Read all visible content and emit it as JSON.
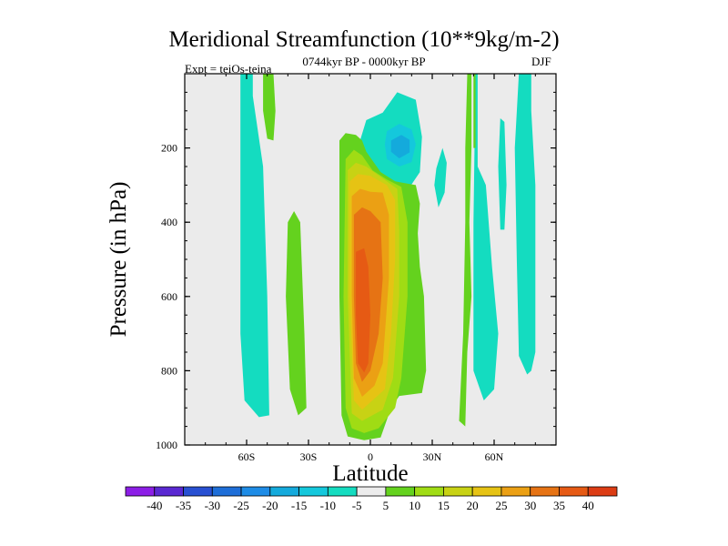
{
  "chart_data": {
    "type": "heatmap",
    "title": "Meridional Streamfunction (10**9kg/m-2)",
    "subtitle": "0744kyr BP - 0000kyr BP",
    "left_annotation": "Expt = teiOs-teina",
    "right_annotation": "DJF",
    "xlabel": "Latitude",
    "ylabel": "Pressure (in hPa)",
    "xlim": [
      -90,
      90
    ],
    "ylim": [
      0,
      1000
    ],
    "x_ticks": [
      -60,
      -30,
      0,
      30,
      60
    ],
    "x_tick_labels": [
      "60S",
      "30S",
      "0",
      "30N",
      "60N"
    ],
    "y_ticks": [
      200,
      400,
      600,
      800,
      1000
    ],
    "y_tick_labels": [
      "200",
      "400",
      "600",
      "800",
      "1000"
    ],
    "contour_levels": [
      -40,
      -35,
      -30,
      -25,
      -20,
      -15,
      -10,
      -5,
      5,
      10,
      15,
      20,
      25,
      30,
      35,
      40
    ],
    "colorbar_labels": [
      "-40",
      "-35",
      "-30",
      "-25",
      "-20",
      "-15",
      "-10",
      "-5",
      "5",
      "10",
      "15",
      "20",
      "25",
      "30",
      "35",
      "40"
    ],
    "colorbar_colors": [
      "#8c1ee6",
      "#5a28d2",
      "#2850d2",
      "#1e6ed8",
      "#1e8ce6",
      "#14aadc",
      "#14c8dc",
      "#14dcc0",
      "#ececec",
      "#64d21e",
      "#a0dc14",
      "#c8d214",
      "#e6c314",
      "#eba014",
      "#e67314",
      "#e65a14",
      "#dc3c14"
    ],
    "field_regions": [
      {
        "level": -5,
        "points": [
          [
            -63,
            0
          ],
          [
            -57,
            0
          ],
          [
            -57,
            60
          ],
          [
            -52,
            250
          ],
          [
            -50,
            600
          ],
          [
            -49,
            920
          ],
          [
            -54,
            925
          ],
          [
            -61,
            880
          ],
          [
            -63,
            700
          ],
          [
            -63,
            0
          ]
        ]
      },
      {
        "level": -5,
        "points": [
          [
            -5,
            180
          ],
          [
            -2,
            125
          ],
          [
            6,
            105
          ],
          [
            13,
            50
          ],
          [
            22,
            70
          ],
          [
            25,
            170
          ],
          [
            24,
            265
          ],
          [
            20,
            298
          ],
          [
            12,
            310
          ],
          [
            4,
            295
          ],
          [
            -5,
            250
          ]
        ]
      },
      {
        "level": -10,
        "points": [
          [
            8,
            155
          ],
          [
            14,
            135
          ],
          [
            20,
            150
          ],
          [
            22,
            190
          ],
          [
            20,
            238
          ],
          [
            14,
            250
          ],
          [
            8,
            230
          ],
          [
            7,
            190
          ]
        ]
      },
      {
        "level": -15,
        "points": [
          [
            10,
            180
          ],
          [
            15,
            165
          ],
          [
            19,
            178
          ],
          [
            19,
            212
          ],
          [
            14,
            228
          ],
          [
            10,
            210
          ]
        ]
      },
      {
        "level": -5,
        "points": [
          [
            32,
            255
          ],
          [
            35,
            200
          ],
          [
            37,
            240
          ],
          [
            36,
            320
          ],
          [
            33,
            360
          ],
          [
            31,
            300
          ]
        ]
      },
      {
        "level": -5,
        "points": [
          [
            51,
            0
          ],
          [
            52,
            0
          ],
          [
            52,
            250
          ],
          [
            56,
            300
          ],
          [
            59,
            520
          ],
          [
            62,
            700
          ],
          [
            60,
            850
          ],
          [
            55,
            880
          ],
          [
            50,
            800
          ],
          [
            50,
            400
          ],
          [
            51,
            0
          ]
        ]
      },
      {
        "level": -5,
        "points": [
          [
            63,
            120
          ],
          [
            65,
            130
          ],
          [
            66,
            300
          ],
          [
            65,
            420
          ],
          [
            63,
            420
          ],
          [
            62,
            250
          ]
        ]
      },
      {
        "level": -5,
        "points": [
          [
            72,
            0
          ],
          [
            78,
            0
          ],
          [
            78,
            100
          ],
          [
            80,
            300
          ],
          [
            80,
            750
          ],
          [
            78,
            800
          ],
          [
            76,
            810
          ],
          [
            72,
            760
          ],
          [
            71,
            500
          ],
          [
            70,
            200
          ],
          [
            72,
            0
          ]
        ]
      },
      {
        "level": 5,
        "points": [
          [
            -52,
            0
          ],
          [
            -47,
            0
          ],
          [
            -46,
            100
          ],
          [
            -47,
            180
          ],
          [
            -50,
            175
          ],
          [
            -52,
            100
          ]
        ]
      },
      {
        "level": 5,
        "points": [
          [
            -40,
            400
          ],
          [
            -37,
            370
          ],
          [
            -34,
            400
          ],
          [
            -32,
            700
          ],
          [
            -31,
            900
          ],
          [
            -35,
            920
          ],
          [
            -39,
            850
          ],
          [
            -41,
            600
          ]
        ]
      },
      {
        "level": 5,
        "points": [
          [
            -15,
            180
          ],
          [
            -12,
            160
          ],
          [
            -7,
            165
          ],
          [
            -4,
            180
          ],
          [
            -2,
            210
          ],
          [
            5,
            265
          ],
          [
            12,
            290
          ],
          [
            17,
            295
          ],
          [
            22,
            300
          ],
          [
            24,
            350
          ],
          [
            23,
            430
          ],
          [
            24,
            520
          ],
          [
            26,
            600
          ],
          [
            27,
            800
          ],
          [
            25,
            860
          ],
          [
            14,
            868
          ],
          [
            10,
            900
          ],
          [
            5,
            980
          ],
          [
            -3,
            987
          ],
          [
            -11,
            977
          ],
          [
            -14,
            920
          ],
          [
            -15,
            600
          ],
          [
            -15,
            180
          ]
        ]
      },
      {
        "level": 10,
        "points": [
          [
            -12,
            230
          ],
          [
            -8,
            205
          ],
          [
            -4,
            220
          ],
          [
            1,
            260
          ],
          [
            8,
            285
          ],
          [
            15,
            305
          ],
          [
            18,
            400
          ],
          [
            18,
            600
          ],
          [
            15,
            820
          ],
          [
            12,
            900
          ],
          [
            4,
            955
          ],
          [
            -3,
            968
          ],
          [
            -9,
            955
          ],
          [
            -12,
            900
          ],
          [
            -13,
            600
          ]
        ]
      },
      {
        "level": 15,
        "points": [
          [
            -11,
            260
          ],
          [
            -7,
            240
          ],
          [
            -2,
            250
          ],
          [
            6,
            282
          ],
          [
            13,
            310
          ],
          [
            14,
            420
          ],
          [
            14,
            600
          ],
          [
            11,
            820
          ],
          [
            6,
            905
          ],
          [
            -4,
            935
          ],
          [
            -9,
            915
          ],
          [
            -11,
            600
          ]
        ]
      },
      {
        "level": 20,
        "points": [
          [
            -10,
            290
          ],
          [
            -6,
            270
          ],
          [
            0,
            275
          ],
          [
            8,
            300
          ],
          [
            12,
            340
          ],
          [
            12,
            500
          ],
          [
            10,
            700
          ],
          [
            7,
            850
          ],
          [
            -4,
            905
          ],
          [
            -8,
            880
          ],
          [
            -10,
            600
          ]
        ]
      },
      {
        "level": 25,
        "points": [
          [
            -9,
            330
          ],
          [
            -5,
            310
          ],
          [
            0,
            318
          ],
          [
            6,
            320
          ],
          [
            9,
            380
          ],
          [
            9,
            550
          ],
          [
            6,
            780
          ],
          [
            2,
            840
          ],
          [
            -4,
            870
          ],
          [
            -8,
            820
          ],
          [
            -9,
            600
          ]
        ]
      },
      {
        "level": 30,
        "points": [
          [
            -8,
            380
          ],
          [
            -4,
            360
          ],
          [
            0,
            370
          ],
          [
            5,
            400
          ],
          [
            6,
            550
          ],
          [
            4,
            700
          ],
          [
            0,
            800
          ],
          [
            -4,
            830
          ],
          [
            -7,
            780
          ],
          [
            -8,
            600
          ]
        ]
      },
      {
        "level": 35,
        "points": [
          [
            -7,
            480
          ],
          [
            -3,
            470
          ],
          [
            -1,
            520
          ],
          [
            0,
            650
          ],
          [
            -1,
            780
          ],
          [
            -3,
            805
          ],
          [
            -6,
            780
          ],
          [
            -7,
            650
          ]
        ]
      },
      {
        "level": 5,
        "points": [
          [
            47,
            0
          ],
          [
            49,
            0
          ],
          [
            49,
            200
          ],
          [
            48,
            400
          ],
          [
            49,
            600
          ],
          [
            47,
            750
          ],
          [
            46,
            950
          ],
          [
            43,
            935
          ],
          [
            45,
            700
          ],
          [
            46,
            400
          ],
          [
            46,
            200
          ]
        ]
      },
      {
        "level": 5,
        "points": [
          [
            50,
            0
          ],
          [
            51,
            0
          ],
          [
            51,
            200
          ],
          [
            50,
            200
          ]
        ]
      }
    ]
  }
}
